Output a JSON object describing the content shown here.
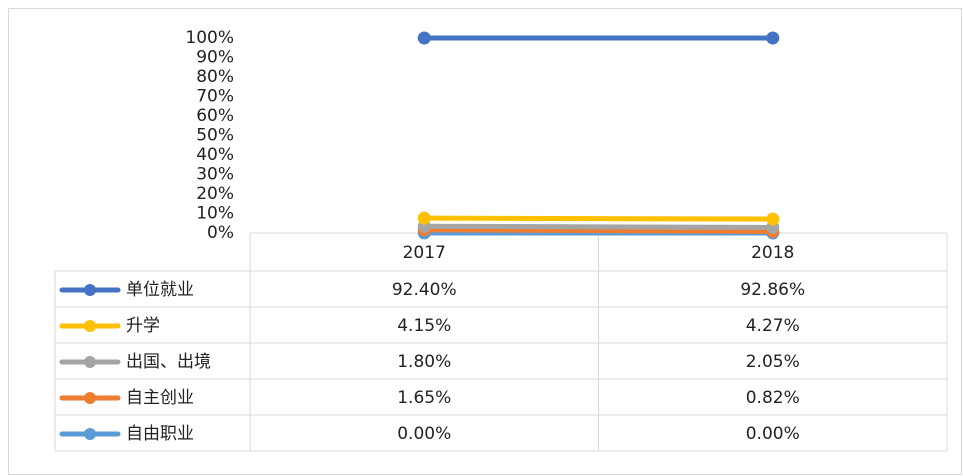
{
  "chart_data": {
    "type": "line",
    "stacked": true,
    "categories": [
      "2017",
      "2018"
    ],
    "series": [
      {
        "name": "单位就业",
        "color": "#4472c4",
        "values": [
          92.4,
          92.86
        ],
        "value_labels": [
          "92.40%",
          "92.86%"
        ]
      },
      {
        "name": "升学",
        "color": "#ffc000",
        "values": [
          4.15,
          4.27
        ],
        "value_labels": [
          "4.15%",
          "4.27%"
        ]
      },
      {
        "name": "出国、出境",
        "color": "#a5a5a5",
        "values": [
          1.8,
          2.05
        ],
        "value_labels": [
          "1.80%",
          "2.05%"
        ]
      },
      {
        "name": "自主创业",
        "color": "#ed7d31",
        "values": [
          1.65,
          0.82
        ],
        "value_labels": [
          "1.65%",
          "0.82%"
        ]
      },
      {
        "name": "自由职业",
        "color": "#5b9bd5",
        "values": [
          0,
          0
        ],
        "value_labels": [
          "0.00%",
          "0.00%"
        ]
      }
    ],
    "ylim": [
      0,
      100
    ],
    "yticks": [
      {
        "value": 0,
        "label": "0%"
      },
      {
        "value": 10,
        "label": "10%"
      },
      {
        "value": 20,
        "label": "20%"
      },
      {
        "value": 30,
        "label": "30%"
      },
      {
        "value": 40,
        "label": "40%"
      },
      {
        "value": 50,
        "label": "50%"
      },
      {
        "value": 60,
        "label": "60%"
      },
      {
        "value": 70,
        "label": "70%"
      },
      {
        "value": 80,
        "label": "80%"
      },
      {
        "value": 90,
        "label": "90%"
      },
      {
        "value": 100,
        "label": "100%"
      }
    ]
  }
}
